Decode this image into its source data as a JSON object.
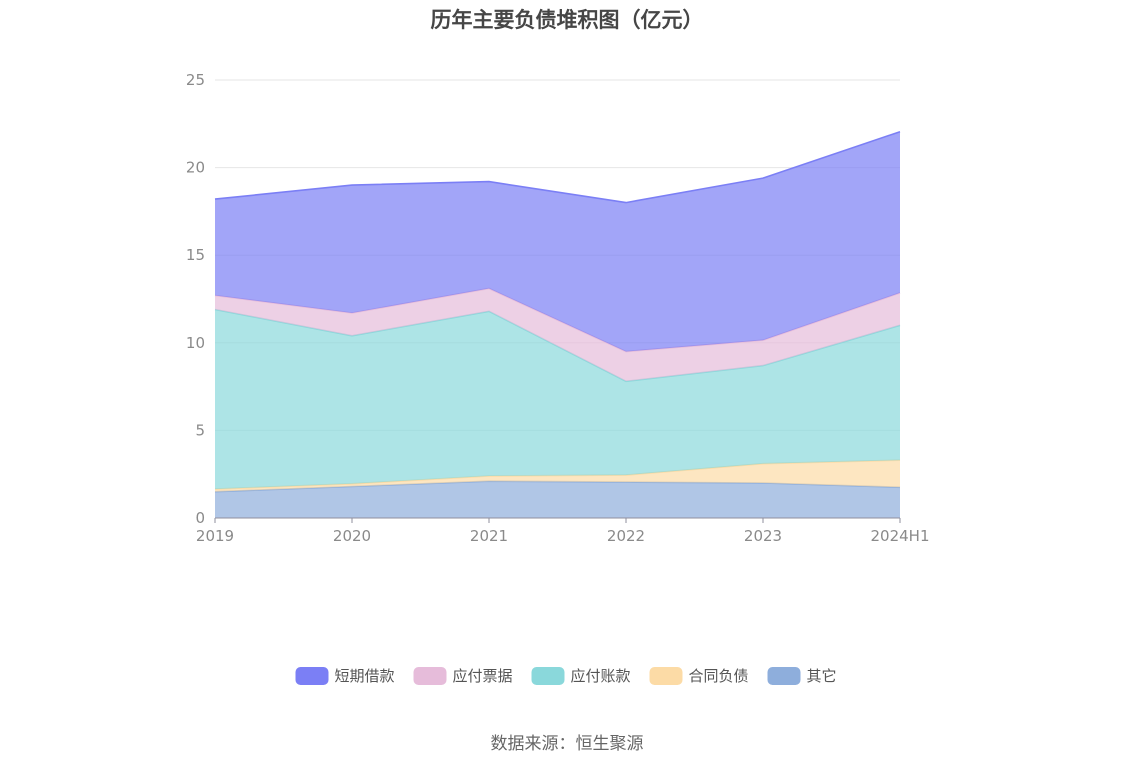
{
  "chart_data": {
    "type": "area",
    "stacked": true,
    "title": "历年主要负债堆积图（亿元）",
    "xlabel": "",
    "ylabel": "",
    "categories": [
      "2019",
      "2020",
      "2021",
      "2022",
      "2023",
      "2024H1"
    ],
    "ylim": [
      0,
      25
    ],
    "yticks": [
      0,
      5,
      10,
      15,
      20,
      25
    ],
    "grid": true,
    "legend_position": "bottom",
    "series": [
      {
        "name": "其它",
        "color": "#8eaedc",
        "values": [
          1.5,
          1.8,
          2.1,
          2.05,
          2.0,
          1.75
        ]
      },
      {
        "name": "合同负债",
        "color": "#fcdba6",
        "values": [
          0.15,
          0.15,
          0.3,
          0.4,
          1.1,
          1.55
        ]
      },
      {
        "name": "应付账款",
        "color": "#8ad8db",
        "values": [
          10.25,
          8.45,
          9.4,
          5.35,
          5.6,
          7.7
        ]
      },
      {
        "name": "应付票据",
        "color": "#e6bcda",
        "values": [
          0.8,
          1.3,
          1.3,
          1.7,
          1.45,
          1.85
        ]
      },
      {
        "name": "短期借款",
        "color": "#7b7ff5",
        "values": [
          5.5,
          7.3,
          6.1,
          8.5,
          9.25,
          9.2
        ]
      }
    ],
    "legend_order": [
      "短期借款",
      "应付票据",
      "应付账款",
      "合同负债",
      "其它"
    ]
  },
  "source_note": "数据来源：恒生聚源"
}
